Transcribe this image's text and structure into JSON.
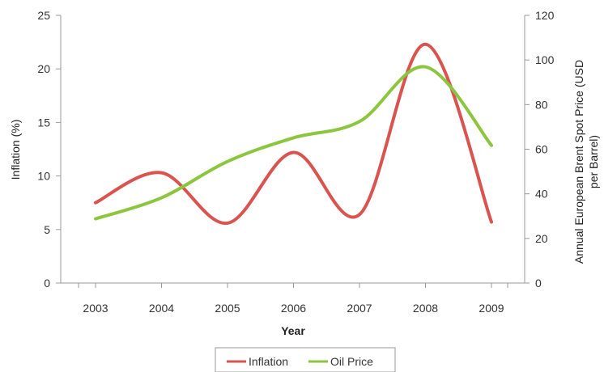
{
  "chart_data": {
    "type": "line",
    "title": "",
    "xlabel": "Year",
    "ylabel": "Inflation (%)",
    "y2label_line1": "Annual European Brent Spot Price (USD",
    "y2label_line2": "per Barrel)",
    "categories": [
      "2003",
      "2004",
      "2005",
      "2006",
      "2007",
      "2008",
      "2009"
    ],
    "ylim": [
      0,
      25
    ],
    "y2lim": [
      0,
      120
    ],
    "yticks": [
      "0",
      "5",
      "10",
      "15",
      "20",
      "25"
    ],
    "y2ticks": [
      "0",
      "20",
      "40",
      "60",
      "80",
      "100",
      "120"
    ],
    "grid": false,
    "legend_position": "bottom",
    "smooth": true,
    "series": [
      {
        "name": "Inflation",
        "axis": "left",
        "color": "#d9534f",
        "values": [
          7.5,
          10.3,
          5.6,
          12.2,
          6.4,
          22.3,
          5.7
        ]
      },
      {
        "name": "Oil Price",
        "axis": "right",
        "color": "#8cc63f",
        "values": [
          28.8,
          38.2,
          54.5,
          65.1,
          72.4,
          96.9,
          61.7
        ]
      }
    ]
  }
}
